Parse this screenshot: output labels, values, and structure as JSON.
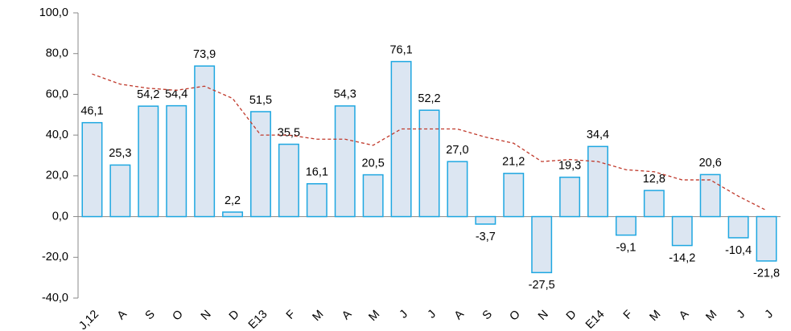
{
  "chart_data": {
    "type": "bar",
    "categories": [
      "J,12",
      "A",
      "S",
      "O",
      "N",
      "D",
      "E13",
      "F",
      "M",
      "A",
      "M",
      "J",
      "J",
      "A",
      "S",
      "O",
      "N",
      "D",
      "E14",
      "F",
      "M",
      "A",
      "M",
      "J",
      "J"
    ],
    "series": [
      {
        "type": "bar",
        "color": "#dce6f2",
        "stroke": "#1ea7e1",
        "values": [
          46.1,
          25.3,
          54.2,
          54.4,
          73.9,
          2.2,
          51.5,
          35.5,
          16.1,
          54.3,
          20.5,
          76.1,
          52.2,
          27.0,
          -3.7,
          21.2,
          -27.5,
          19.3,
          34.4,
          -9.1,
          12.8,
          -14.2,
          20.6,
          -10.4,
          -21.8
        ],
        "value_labels": [
          "46,1",
          "25,3",
          "54,2",
          "54,4",
          "73,9",
          "2,2",
          "51,5",
          "35,5",
          "16,1",
          "54,3",
          "20,5",
          "76,1",
          "52,2",
          "27,0",
          "-3,7",
          "21,2",
          "-27,5",
          "19,3",
          "34,4",
          "-9,1",
          "12,8",
          "-14,2",
          "20,6",
          "-10,4",
          "-21,8"
        ]
      },
      {
        "type": "line",
        "color": "#c0392b",
        "dashed": true,
        "values": [
          70,
          65,
          63,
          62,
          64,
          58,
          40,
          40,
          38,
          38,
          35,
          43,
          43,
          43,
          39,
          36,
          27,
          28,
          27,
          23,
          22,
          18,
          18,
          10,
          3
        ]
      }
    ],
    "ylim": [
      -40,
      100
    ],
    "yticks": [
      {
        "value": -40,
        "label": "-40,0"
      },
      {
        "value": -20,
        "label": "-20,0"
      },
      {
        "value": 0,
        "label": "0,0"
      },
      {
        "value": 20,
        "label": "20,0"
      },
      {
        "value": 40,
        "label": "40,0"
      },
      {
        "value": 60,
        "label": "60,0"
      },
      {
        "value": 80,
        "label": "80,0"
      },
      {
        "value": 100,
        "label": "100,0"
      }
    ]
  }
}
